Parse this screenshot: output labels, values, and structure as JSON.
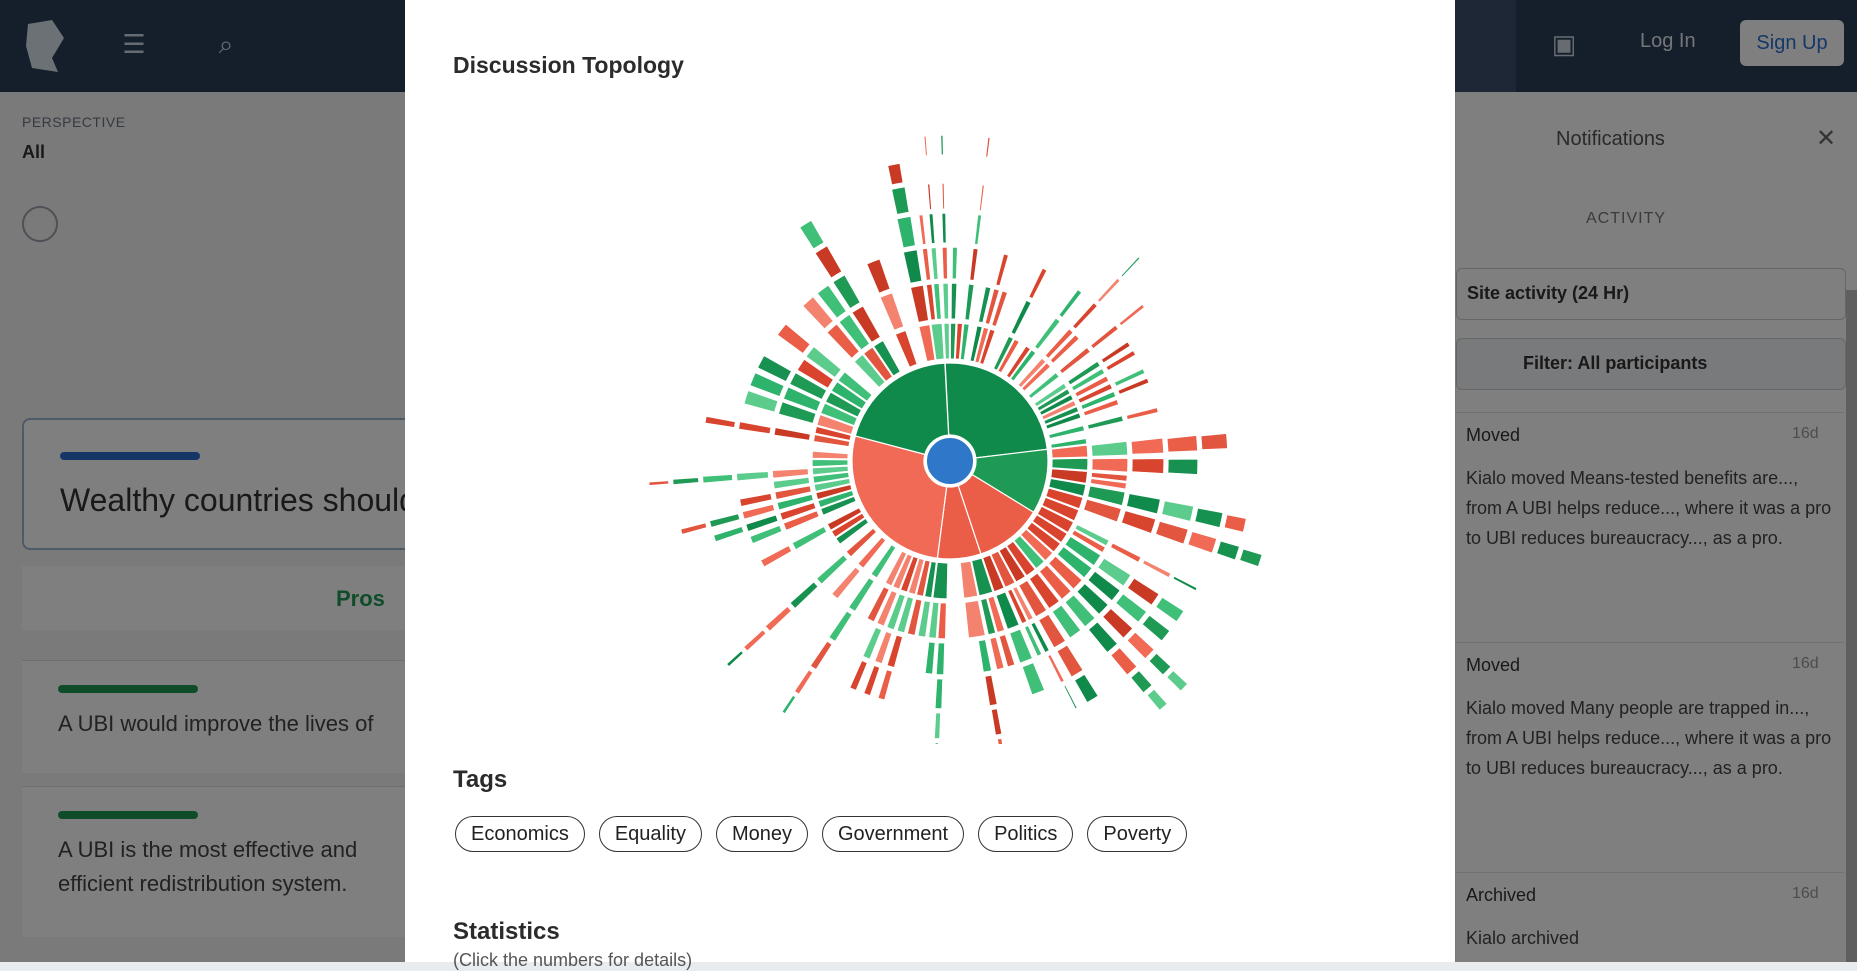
{
  "background": {
    "context_label": "PERSPECTIVE",
    "context_value": "All",
    "claim_title": "Wealthy countries should",
    "pros_tab": "Pros",
    "arguments": [
      "A UBI would improve the lives of",
      "A UBI is the most effective and efficient redistribution system."
    ],
    "login": "Log In",
    "signup": "Sign Up",
    "notifications": {
      "title": "Notifications",
      "activity_label": "ACTIVITY",
      "filter_select": "Site activity (24 Hr)",
      "filter_participants": "Filter: All participants",
      "items": [
        {
          "heading": "Moved",
          "ago": "16d",
          "body": "Kialo moved Means-tested benefits are..., from A UBI helps reduce..., where it was a pro to UBI reduces bureaucracy..., as a pro."
        },
        {
          "heading": "Moved",
          "ago": "16d",
          "body": "Kialo moved Many people are trapped in..., from A UBI helps reduce..., where it was a pro to UBI reduces bureaucracy..., as a pro."
        },
        {
          "heading": "Archived",
          "ago": "16d",
          "body": "Kialo archived"
        }
      ]
    }
  },
  "modal": {
    "title": "Discussion Topology",
    "tags_title": "Tags",
    "tags": [
      "Economics",
      "Equality",
      "Money",
      "Government",
      "Politics",
      "Poverty"
    ],
    "statistics_title": "Statistics",
    "statistics_subtitle": "(Click the numbers for details)"
  },
  "colors": {
    "topbar": "#2a3e57",
    "pro_green": "#1f9a55",
    "con_red": "#e2553f",
    "center_blue": "#2f78c9"
  }
}
